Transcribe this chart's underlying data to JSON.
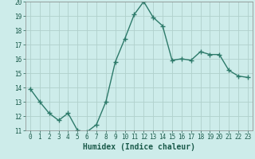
{
  "x": [
    0,
    1,
    2,
    3,
    4,
    5,
    6,
    7,
    8,
    9,
    10,
    11,
    12,
    13,
    14,
    15,
    16,
    17,
    18,
    19,
    20,
    21,
    22,
    23
  ],
  "y": [
    13.9,
    13.0,
    12.2,
    11.7,
    12.2,
    11.0,
    10.9,
    11.4,
    13.0,
    15.8,
    17.4,
    19.1,
    20.0,
    18.9,
    18.3,
    15.9,
    16.0,
    15.9,
    16.5,
    16.3,
    16.3,
    15.2,
    14.8,
    14.7
  ],
  "line_color": "#2d7a6a",
  "marker": "+",
  "marker_size": 4,
  "marker_lw": 1.0,
  "line_width": 1.0,
  "bg_color": "#cdecea",
  "grid_color": "#b0d0cc",
  "xlabel": "Humidex (Indice chaleur)",
  "ylim": [
    11,
    20
  ],
  "xlim_min": -0.5,
  "xlim_max": 23.5,
  "yticks": [
    11,
    12,
    13,
    14,
    15,
    16,
    17,
    18,
    19,
    20
  ],
  "xticks": [
    0,
    1,
    2,
    3,
    4,
    5,
    6,
    7,
    8,
    9,
    10,
    11,
    12,
    13,
    14,
    15,
    16,
    17,
    18,
    19,
    20,
    21,
    22,
    23
  ],
  "tick_color": "#1a5a4a",
  "label_color": "#1a5a4a",
  "tick_fontsize": 5.5,
  "xlabel_fontsize": 7.0
}
